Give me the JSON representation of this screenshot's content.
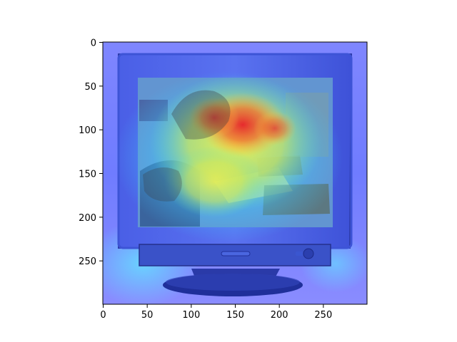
{
  "figure": {
    "image_subject": "CRT computer monitor photo with heatmap overlay",
    "overlay_colormap": "jet",
    "overlay_hot_color": "#e8202a",
    "overlay_cold_color": "#3030ff"
  },
  "axes": {
    "x_ticks": [
      {
        "value": 0,
        "label": "0"
      },
      {
        "value": 50,
        "label": "50"
      },
      {
        "value": 100,
        "label": "100"
      },
      {
        "value": 150,
        "label": "150"
      },
      {
        "value": 200,
        "label": "200"
      },
      {
        "value": 250,
        "label": "250"
      }
    ],
    "y_ticks": [
      {
        "value": 0,
        "label": "0"
      },
      {
        "value": 50,
        "label": "50"
      },
      {
        "value": 100,
        "label": "100"
      },
      {
        "value": 150,
        "label": "150"
      },
      {
        "value": 200,
        "label": "200"
      },
      {
        "value": 250,
        "label": "250"
      }
    ],
    "x_range": [
      0,
      300
    ],
    "y_range": [
      300,
      0
    ]
  }
}
